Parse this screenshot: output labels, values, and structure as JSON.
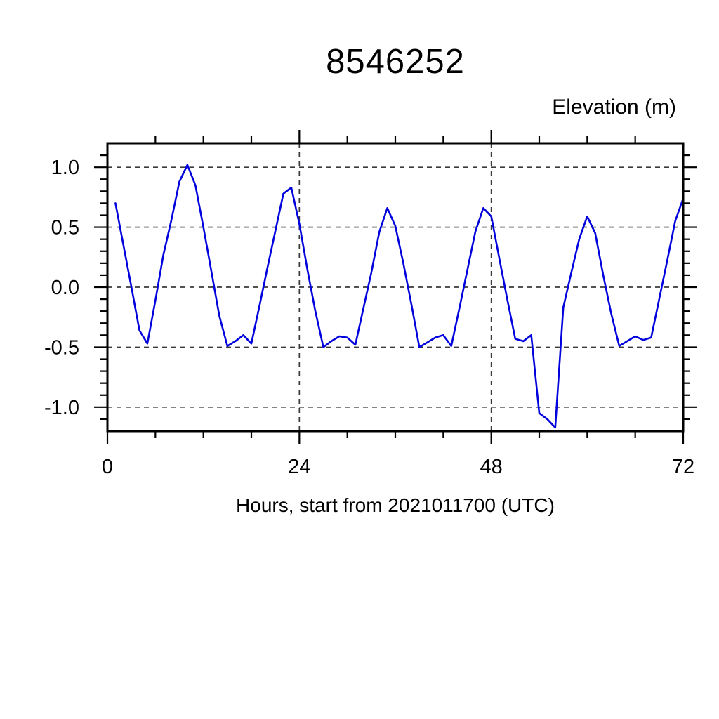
{
  "page": {
    "background_color": "#ffffff",
    "text_color": "#000000"
  },
  "chart_data": {
    "type": "line",
    "title": "8546252",
    "xlabel": "Hours, start from 2021011700 (UTC)",
    "ylabel": "Elevation (m)",
    "xlim": [
      0,
      72
    ],
    "ylim": [
      -1.2,
      1.2
    ],
    "x_major_ticks": [
      0,
      24,
      48,
      72
    ],
    "x_tick_labels": [
      "0",
      "24",
      "48",
      "72"
    ],
    "x_minor_step": 6,
    "y_major_ticks": [
      1.0,
      0.5,
      0.0,
      -0.5,
      -1.0
    ],
    "y_tick_labels": [
      "1.0",
      "0.5",
      "0.0",
      "-0.5",
      "-1.0"
    ],
    "y_minor_step": 0.1,
    "grid": "dashed horizontal lines at y major ticks; dashed vertical lines at x = 24 and 48",
    "v_gridlines": [
      24,
      48
    ],
    "legend_position": "none",
    "style": {
      "line_color": "#0101dd",
      "frame_color": "#000000",
      "grid_color": "#3a3a3a",
      "tick_color": "#000000"
    },
    "series": [
      {
        "name": "Elevation",
        "color": "#0101dd",
        "x": [
          1,
          2,
          3,
          4,
          5,
          6,
          7,
          8,
          9,
          10,
          11,
          12,
          13,
          14,
          15,
          16,
          17,
          18,
          19,
          20,
          21,
          22,
          23,
          24,
          25,
          26,
          27,
          28,
          29,
          30,
          31,
          32,
          33,
          34,
          35,
          36,
          37,
          38,
          39,
          40,
          41,
          42,
          43,
          44,
          45,
          46,
          47,
          48,
          49,
          50,
          51,
          52,
          53,
          54,
          55,
          56,
          57,
          58,
          59,
          60,
          61,
          62,
          63,
          64,
          65,
          66,
          67,
          68,
          69,
          70,
          71,
          72
        ],
        "y": [
          0.7,
          0.35,
          0.0,
          -0.36,
          -0.47,
          -0.11,
          0.27,
          0.56,
          0.88,
          1.02,
          0.85,
          0.5,
          0.13,
          -0.24,
          -0.49,
          -0.45,
          -0.4,
          -0.47,
          -0.16,
          0.16,
          0.47,
          0.78,
          0.83,
          0.53,
          0.15,
          -0.2,
          -0.5,
          -0.45,
          -0.41,
          -0.42,
          -0.48,
          -0.18,
          0.12,
          0.46,
          0.66,
          0.51,
          0.2,
          -0.14,
          -0.5,
          -0.46,
          -0.42,
          -0.4,
          -0.49,
          -0.18,
          0.14,
          0.46,
          0.66,
          0.59,
          0.24,
          -0.1,
          -0.43,
          -0.45,
          -0.4,
          -1.05,
          -1.1,
          -1.17,
          -0.17,
          0.12,
          0.4,
          0.59,
          0.45,
          0.1,
          -0.22,
          -0.49,
          -0.45,
          -0.41,
          -0.44,
          -0.42,
          -0.1,
          0.22,
          0.55,
          0.74
        ]
      }
    ]
  }
}
